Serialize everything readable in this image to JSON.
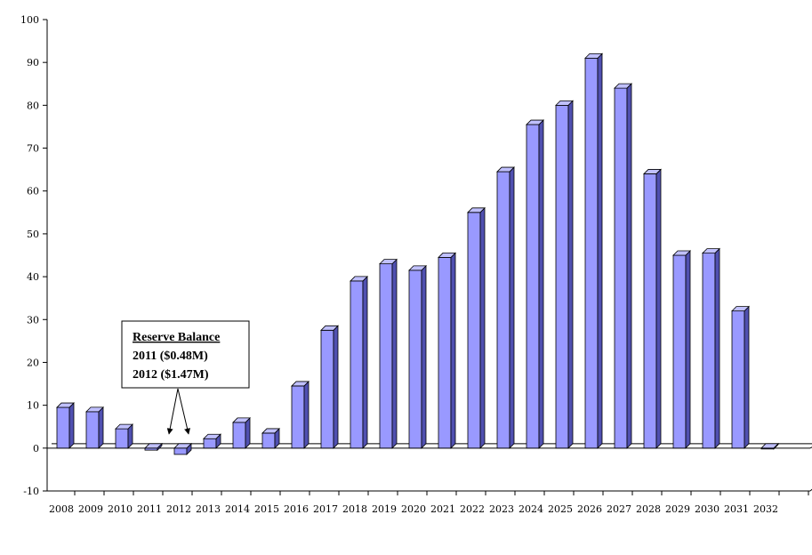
{
  "chart_data": {
    "type": "bar",
    "title": "",
    "xlabel": "",
    "ylabel": "",
    "categories": [
      "2008",
      "2009",
      "2010",
      "2011",
      "2012",
      "2013",
      "2014",
      "2015",
      "2016",
      "2017",
      "2018",
      "2019",
      "2020",
      "2021",
      "2022",
      "2023",
      "2024",
      "2025",
      "2026",
      "2027",
      "2028",
      "2029",
      "2030",
      "2031",
      "2032"
    ],
    "values": [
      9.5,
      8.5,
      4.5,
      -0.48,
      -1.47,
      2.2,
      6.0,
      3.5,
      14.5,
      27.5,
      39.0,
      43.0,
      41.5,
      44.5,
      55.0,
      64.5,
      75.5,
      80.0,
      91.0,
      84.0,
      64.0,
      45.0,
      45.5,
      32.0,
      0.0
    ],
    "ylim": [
      -10,
      100
    ],
    "yticks": [
      -10,
      0,
      10,
      20,
      30,
      40,
      50,
      60,
      70,
      80,
      90,
      100
    ],
    "yticklabels": [
      "-10",
      "0",
      "10",
      "20",
      "30",
      "40",
      "50",
      "60",
      "70",
      "80",
      "90",
      "100"
    ],
    "grid": false,
    "bar_color": "#9999ff",
    "bar_side_color": "#5050b0",
    "bar_top_color": "#c0c0ff",
    "annotation": {
      "title": "Reserve Balance",
      "lines": [
        "2011 ($0.48M)",
        "2012 ($1.47M)"
      ],
      "points_to": [
        "2011",
        "2012"
      ]
    }
  }
}
